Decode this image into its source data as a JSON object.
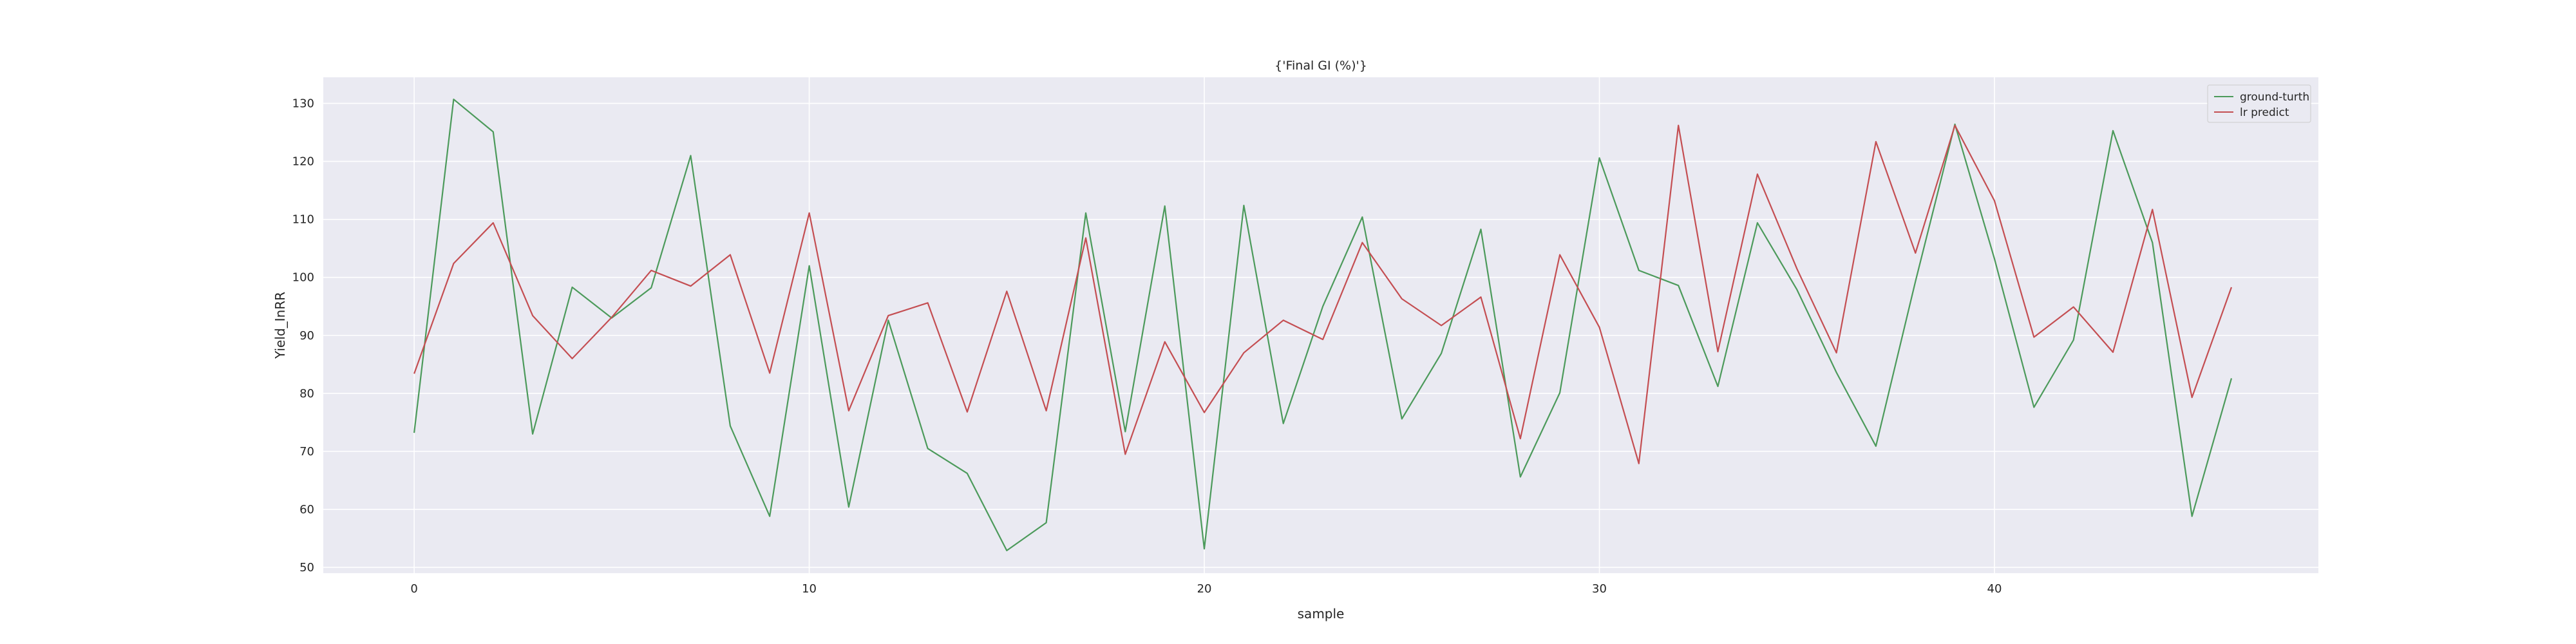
{
  "chart_data": {
    "type": "line",
    "title": "{'Final GI (%)'}",
    "xlabel": "sample",
    "ylabel": "Yield_InRR",
    "xlim": [
      -2.3,
      48.2
    ],
    "ylim": [
      49,
      134.5
    ],
    "xticks": [
      0,
      10,
      20,
      30,
      40
    ],
    "yticks": [
      50,
      60,
      70,
      80,
      90,
      100,
      110,
      120,
      130
    ],
    "grid": true,
    "legend": "top-right",
    "x": [
      0,
      1,
      2,
      3,
      4,
      5,
      6,
      7,
      8,
      9,
      10,
      11,
      12,
      13,
      14,
      15,
      16,
      17,
      18,
      19,
      20,
      21,
      22,
      23,
      24,
      25,
      26,
      27,
      28,
      29,
      30,
      31,
      32,
      33,
      34,
      35,
      36,
      37,
      38,
      39,
      40,
      41,
      42,
      43,
      44,
      45,
      46
    ],
    "series": [
      {
        "name": "ground-turth",
        "color": "#4c9a5b",
        "values": [
          73.2,
          130.7,
          125.1,
          73.0,
          98.3,
          93.0,
          98.2,
          121.0,
          74.4,
          58.8,
          102.0,
          60.4,
          92.6,
          70.5,
          66.2,
          52.9,
          57.7,
          111.1,
          73.4,
          112.3,
          53.2,
          112.4,
          74.8,
          95.0,
          110.4,
          75.6,
          86.9,
          108.3,
          65.6,
          80.1,
          120.6,
          101.2,
          98.6,
          81.2,
          109.4,
          97.9,
          83.6,
          70.9,
          99.3,
          126.4,
          103.2,
          77.6,
          89.2,
          125.3,
          106.0,
          58.8,
          82.6
        ]
      },
      {
        "name": "lr predict",
        "color": "#c44e52",
        "values": [
          83.4,
          102.4,
          109.4,
          93.4,
          86.0,
          93.1,
          101.2,
          98.5,
          103.9,
          83.5,
          111.1,
          77.0,
          93.4,
          95.6,
          76.8,
          97.6,
          77.0,
          106.8,
          69.5,
          88.9,
          76.7,
          87.0,
          92.6,
          89.3,
          106.0,
          96.3,
          91.7,
          96.6,
          72.2,
          103.9,
          91.4,
          67.9,
          126.2,
          87.2,
          117.8,
          101.5,
          87.0,
          123.4,
          104.2,
          126.2,
          113.2,
          89.7,
          94.9,
          87.1,
          111.7,
          79.3,
          98.3
        ]
      }
    ]
  }
}
